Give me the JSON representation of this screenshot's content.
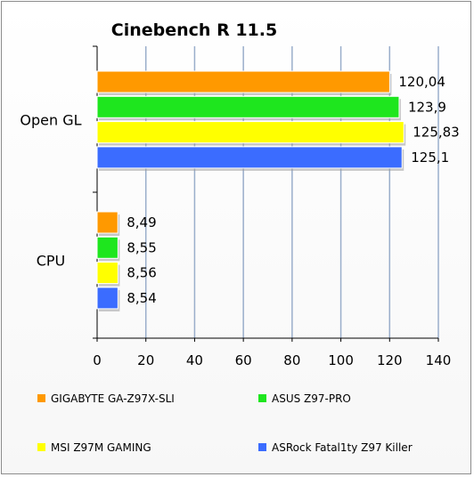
{
  "chart_data": {
    "type": "bar",
    "orientation": "horizontal",
    "title": "Cinebench R 11.5",
    "xlabel": "",
    "ylabel": "",
    "categories": [
      "Open GL",
      "CPU"
    ],
    "series": [
      {
        "name": "GIGABYTE GA-Z97X-SLI",
        "color": "#ff9900",
        "values": [
          120.04,
          8.49
        ],
        "labels": [
          "120,04",
          "8,49"
        ]
      },
      {
        "name": "ASUS Z97-PRO",
        "color": "#1ee61e",
        "values": [
          123.9,
          8.55
        ],
        "labels": [
          "123,9",
          "8,55"
        ]
      },
      {
        "name": "MSI Z97M GAMING",
        "color": "#ffff00",
        "values": [
          125.83,
          8.56
        ],
        "labels": [
          "125,83",
          "8,56"
        ]
      },
      {
        "name": "ASRock Fatal1ty Z97 Killer",
        "color": "#3b6cff",
        "values": [
          125.1,
          8.54
        ],
        "labels": [
          "125,1",
          "8,54"
        ]
      }
    ],
    "xlim": [
      0,
      140
    ],
    "xticks": [
      "0",
      "20",
      "40",
      "60",
      "80",
      "100",
      "120",
      "140"
    ],
    "grid": "vertical",
    "legend_position": "bottom"
  }
}
